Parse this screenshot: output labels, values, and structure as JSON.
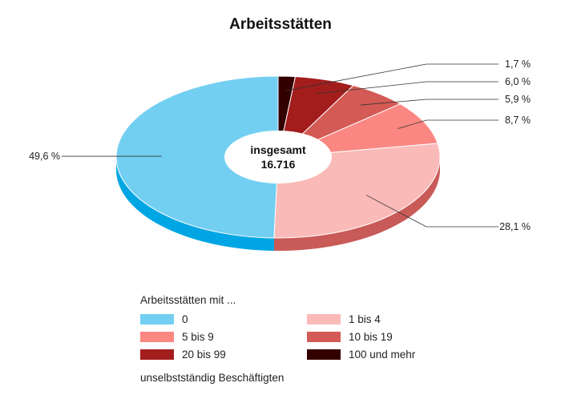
{
  "chart_data": {
    "type": "pie",
    "title": "Arbeitsstätten",
    "center_label": {
      "line1": "insgesamt",
      "line2": "16.716"
    },
    "slices": [
      {
        "label": "100 und mehr",
        "value": 1.7,
        "display": "1,7 %",
        "color": "#330000",
        "side_color": "#1f0000"
      },
      {
        "label": "20 bis 99",
        "value": 6.0,
        "display": "6,0 %",
        "color": "#a31d1d",
        "side_color": "#7a1414"
      },
      {
        "label": "10 bis 19",
        "value": 5.9,
        "display": "5,9 %",
        "color": "#d45a55",
        "side_color": "#a8403c"
      },
      {
        "label": "5 bis 9",
        "value": 8.7,
        "display": "8,7 %",
        "color": "#fa8782",
        "side_color": "#cf605b"
      },
      {
        "label": "1 bis 4",
        "value": 28.1,
        "display": "28,1 %",
        "color": "#fabab7",
        "side_color": "#c85a58"
      },
      {
        "label": "0",
        "value": 49.6,
        "display": "49,6 %",
        "color": "#73cff2",
        "side_color": "#00a6e3"
      }
    ],
    "legend": {
      "title": "Arbeitsstätten mit ...",
      "footer": "unselbstständig Beschäftigten",
      "items": [
        {
          "label": "0",
          "color": "#73cff2"
        },
        {
          "label": "1 bis 4",
          "color": "#fabab7"
        },
        {
          "label": "5 bis 9",
          "color": "#fa8782"
        },
        {
          "label": "10 bis 19",
          "color": "#d45a55"
        },
        {
          "label": "20 bis 99",
          "color": "#a31d1d"
        },
        {
          "label": "100 und mehr",
          "color": "#330000"
        }
      ]
    }
  }
}
